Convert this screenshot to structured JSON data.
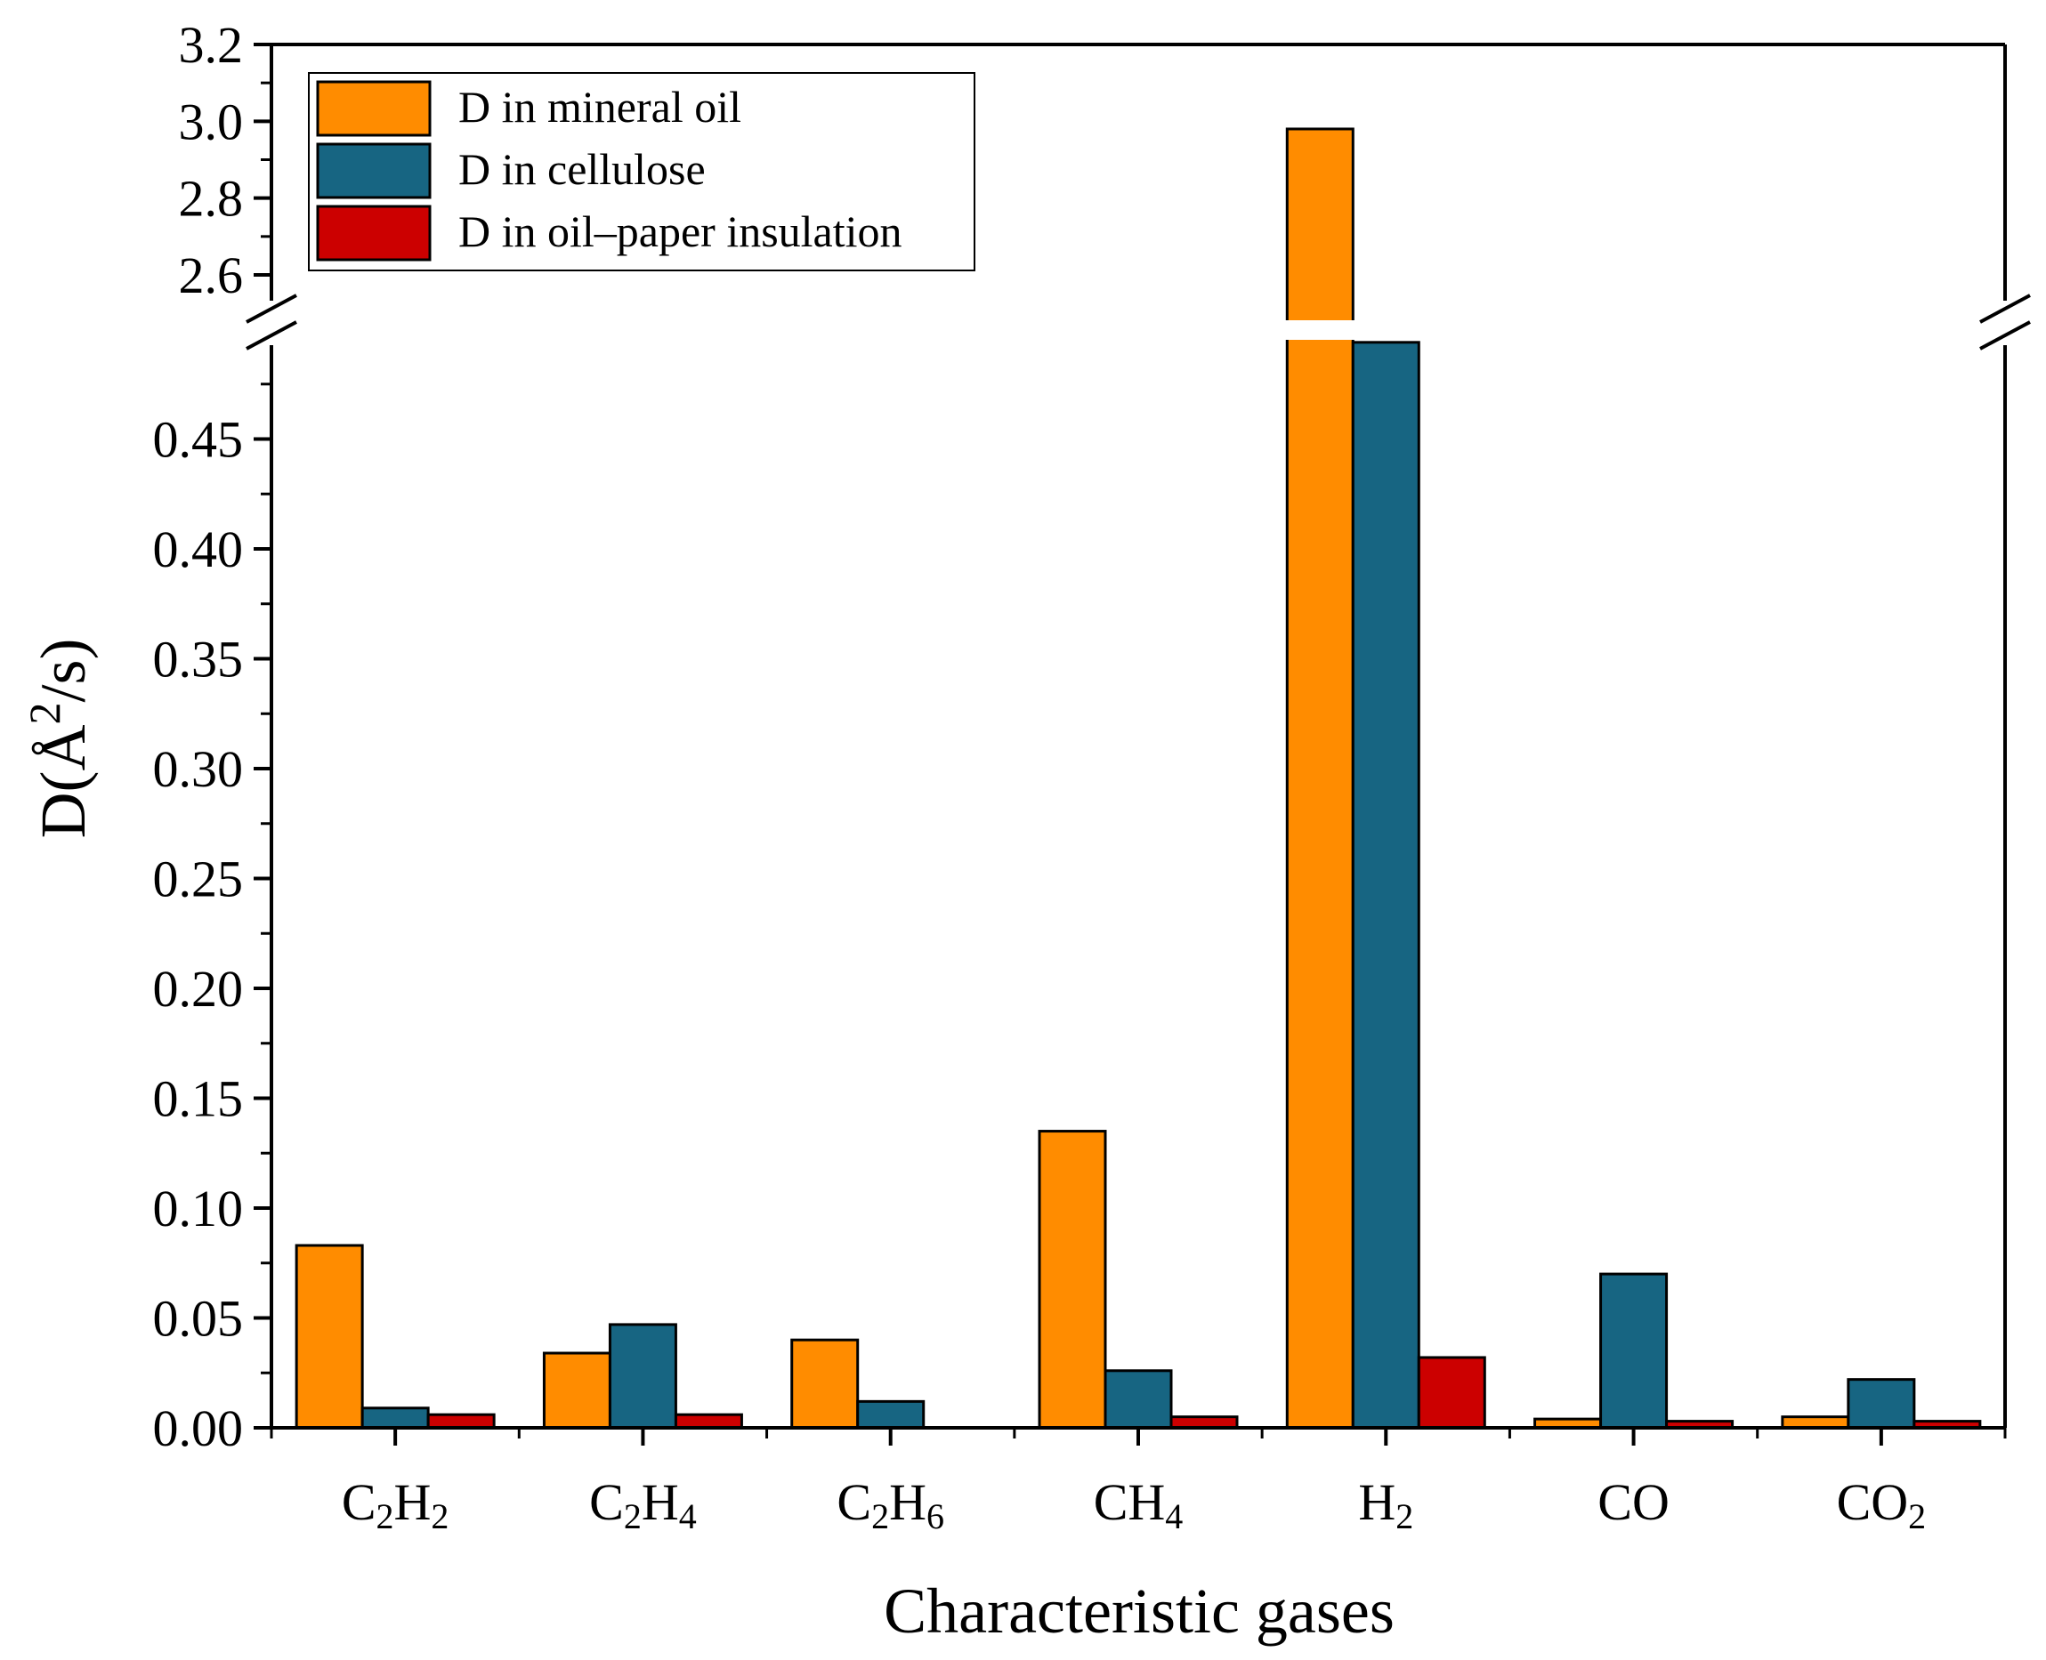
{
  "chart_data": {
    "type": "bar",
    "title": "",
    "xlabel": "Characteristic gases",
    "ylabel_parts": {
      "prefix": "D(",
      "unit": "Å",
      "exponent": "2",
      "suffix": "/s)"
    },
    "categories": [
      {
        "base": "C",
        "parts": [
          [
            "C",
            ""
          ],
          [
            "2",
            "sub"
          ],
          [
            "H",
            ""
          ],
          [
            "2",
            "sub"
          ]
        ],
        "label": "C2H2"
      },
      {
        "base": "C",
        "parts": [
          [
            "C",
            ""
          ],
          [
            "2",
            "sub"
          ],
          [
            "H",
            ""
          ],
          [
            "4",
            "sub"
          ]
        ],
        "label": "C2H4"
      },
      {
        "base": "C",
        "parts": [
          [
            "C",
            ""
          ],
          [
            "2",
            "sub"
          ],
          [
            "H",
            ""
          ],
          [
            "6",
            "sub"
          ]
        ],
        "label": "C2H6"
      },
      {
        "base": "C",
        "parts": [
          [
            "CH",
            ""
          ],
          [
            "4",
            "sub"
          ]
        ],
        "label": "CH4"
      },
      {
        "base": "H",
        "parts": [
          [
            "H",
            ""
          ],
          [
            "2",
            "sub"
          ]
        ],
        "label": "H2"
      },
      {
        "base": "C",
        "parts": [
          [
            "CO",
            ""
          ]
        ],
        "label": "CO"
      },
      {
        "base": "C",
        "parts": [
          [
            "CO",
            ""
          ],
          [
            "2",
            "sub"
          ]
        ],
        "label": "CO2"
      }
    ],
    "series": [
      {
        "name": "D in mineral oil",
        "color": "#FF8C00",
        "values": [
          0.083,
          0.034,
          0.04,
          0.135,
          2.98,
          0.004,
          0.005
        ]
      },
      {
        "name": "D in cellulose",
        "color": "#176582",
        "values": [
          0.009,
          0.047,
          0.012,
          0.026,
          0.494,
          0.07,
          0.022
        ]
      },
      {
        "name": "D in oil–paper insulation",
        "color": "#CC0000",
        "values": [
          0.006,
          0.006,
          0.0,
          0.005,
          0.032,
          0.003,
          0.003
        ]
      }
    ],
    "axis_break": true,
    "lower_ylim": [
      0,
      0.5
    ],
    "upper_ylim": [
      2.5,
      3.2
    ],
    "lower_ticks": [
      "0.00",
      "0.05",
      "0.10",
      "0.15",
      "0.20",
      "0.25",
      "0.30",
      "0.35",
      "0.40",
      "0.45"
    ],
    "upper_ticks": [
      "2.6",
      "2.8",
      "3.0",
      "3.2"
    ],
    "legend_position": "top-left",
    "grid": false
  }
}
